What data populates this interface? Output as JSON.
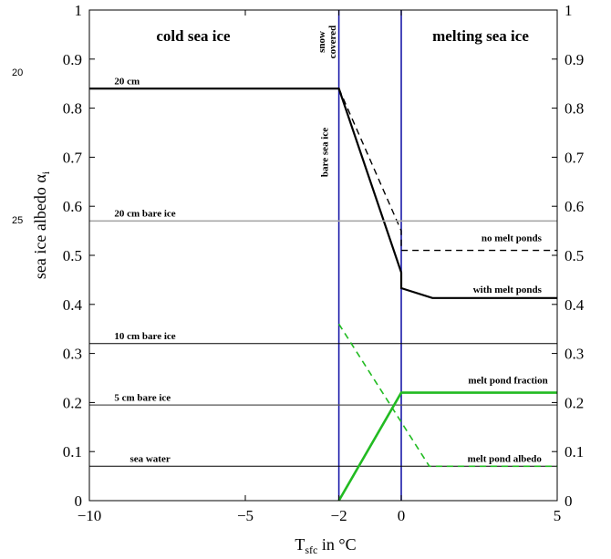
{
  "margin_numbers": [
    "20",
    "25"
  ],
  "chart_data": {
    "type": "line",
    "xlabel": "T",
    "xlabel_sub": "sfc",
    "xlabel_suffix": " in °C",
    "ylabel": "sea ice albedo α",
    "ylabel_sub": "i",
    "xlim": [
      -10,
      5
    ],
    "ylim": [
      0,
      1
    ],
    "x_ticks": [
      -10,
      -5,
      -2,
      0,
      5
    ],
    "x_tick_labels": [
      "−10",
      "−5",
      "−2",
      "0",
      "5"
    ],
    "y_ticks": [
      0,
      0.1,
      0.2,
      0.3,
      0.4,
      0.5,
      0.6,
      0.7,
      0.8,
      0.9,
      1
    ],
    "y_tick_labels": [
      "0",
      "0.1",
      "0.2",
      "0.3",
      "0.4",
      "0.5",
      "0.6",
      "0.7",
      "0.8",
      "0.9",
      "1"
    ],
    "vertical_lines": [
      -2,
      0
    ],
    "region_labels": {
      "left": "cold sea ice",
      "right": "melting sea ice"
    },
    "series": [
      {
        "name": "20 cm",
        "color": "#000000",
        "dash": "solid",
        "width": 2.2,
        "x": [
          -10,
          -2,
          0,
          0,
          1,
          5
        ],
        "y": [
          0.84,
          0.84,
          0.465,
          0.433,
          0.413,
          0.413
        ]
      },
      {
        "name": "no melt ponds",
        "color": "#000000",
        "dash": "dashed",
        "width": 1.4,
        "x": [
          -2,
          0,
          0,
          5
        ],
        "y": [
          0.84,
          0.55,
          0.51,
          0.51
        ]
      },
      {
        "name": "20 cm bare ice",
        "color": "#a8a8a8",
        "dash": "solid",
        "width": 1.6,
        "x": [
          -10,
          5
        ],
        "y": [
          0.57,
          0.57
        ]
      },
      {
        "name": "10 cm bare ice",
        "color": "#000000",
        "dash": "solid",
        "width": 1,
        "x": [
          -10,
          5
        ],
        "y": [
          0.32,
          0.32
        ]
      },
      {
        "name": "5 cm bare ice",
        "color": "#555555",
        "dash": "solid",
        "width": 1.2,
        "x": [
          -10,
          5
        ],
        "y": [
          0.195,
          0.195
        ]
      },
      {
        "name": "sea water",
        "color": "#000000",
        "dash": "solid",
        "width": 1,
        "x": [
          -10,
          5
        ],
        "y": [
          0.07,
          0.07
        ]
      },
      {
        "name": "melt pond fraction",
        "color": "#22bb22",
        "dash": "solid",
        "width": 2.6,
        "x": [
          -2,
          0,
          5
        ],
        "y": [
          0,
          0.22,
          0.22
        ]
      },
      {
        "name": "melt pond albedo",
        "color": "#22bb22",
        "dash": "dashed",
        "width": 1.6,
        "x": [
          -2,
          0.9,
          5
        ],
        "y": [
          0.36,
          0.07,
          0.07
        ]
      }
    ],
    "annotations": [
      {
        "text": "20 cm",
        "x": -9.2,
        "y": 0.845,
        "anchor": "start"
      },
      {
        "text": "20 cm bare ice",
        "x": -9.2,
        "y": 0.575,
        "anchor": "start"
      },
      {
        "text": "10 cm bare ice",
        "x": -9.2,
        "y": 0.325,
        "anchor": "start"
      },
      {
        "text": "5 cm bare ice",
        "x": -9.2,
        "y": 0.2,
        "anchor": "start"
      },
      {
        "text": "sea water",
        "x": -8.7,
        "y": 0.075,
        "anchor": "start"
      },
      {
        "text": "no melt ponds",
        "x": 4.5,
        "y": 0.525,
        "anchor": "end"
      },
      {
        "text": "with melt ponds",
        "x": 4.5,
        "y": 0.42,
        "anchor": "end"
      },
      {
        "text": "melt pond fraction",
        "x": 4.7,
        "y": 0.235,
        "anchor": "end"
      },
      {
        "text": "melt pond albedo",
        "x": 4.5,
        "y": 0.075,
        "anchor": "end"
      }
    ],
    "rotated_annotations": [
      {
        "lines": [
          "snow",
          "covered"
        ],
        "x": -2.45,
        "y": 0.935
      },
      {
        "lines": [
          "bare sea ice"
        ],
        "x": -2.35,
        "y": 0.71
      }
    ]
  }
}
